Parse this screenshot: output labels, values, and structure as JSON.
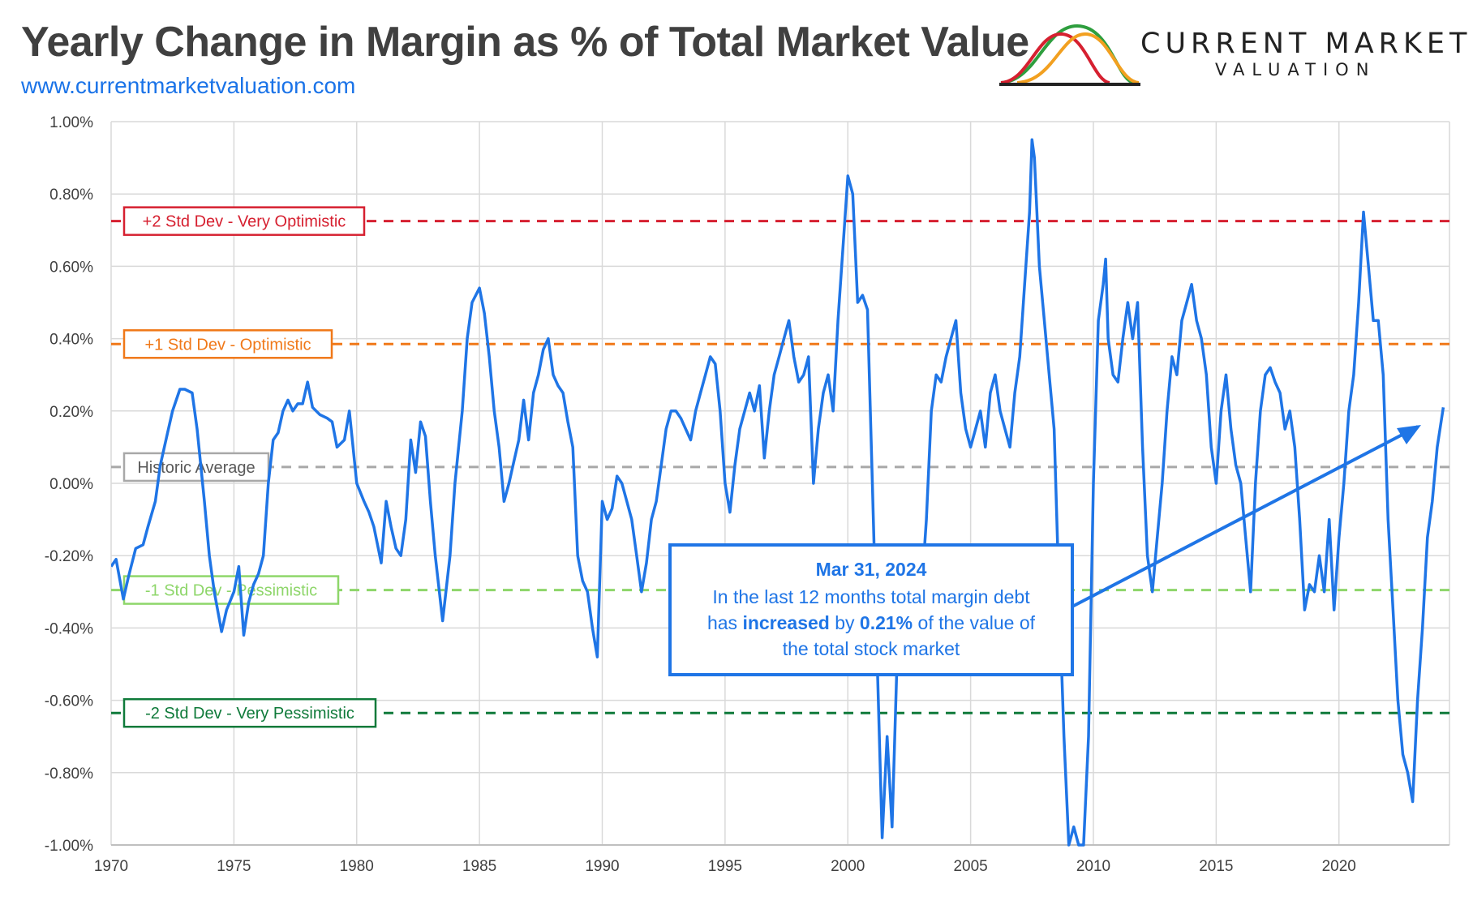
{
  "header": {
    "title": "Yearly Change in Margin as % of Total Market Value",
    "url": "www.currentmarketvaluation.com",
    "logo_line1": "CURRENT MARKET",
    "logo_line2": "VALUATION"
  },
  "chart_data": {
    "type": "line",
    "title": "Yearly Change in Margin as % of Total Market Value",
    "xlabel": "",
    "ylabel": "",
    "xlim": [
      1970,
      2024.5
    ],
    "ylim": [
      -1.0,
      1.0
    ],
    "x_ticks": [
      "1970",
      "1975",
      "1980",
      "1985",
      "1990",
      "1995",
      "2000",
      "2005",
      "2010",
      "2015",
      "2020"
    ],
    "y_ticks": [
      "1.00%",
      "0.80%",
      "0.60%",
      "0.40%",
      "0.20%",
      "0.00%",
      "-0.20%",
      "-0.40%",
      "-0.60%",
      "-0.80%",
      "-1.00%"
    ],
    "grid": true,
    "colors": {
      "series": "#1f75e6",
      "plus2": "#d62030",
      "plus1": "#f07818",
      "average": "#a8a8a8",
      "minus1": "#8ed66a",
      "minus2": "#0f7a3a",
      "callout_border": "#1f75e6",
      "callout_text": "#1f75e6"
    },
    "reference_lines": [
      {
        "key": "plus2",
        "label": "+2 Std Dev - Very Optimistic",
        "value": 0.725
      },
      {
        "key": "plus1",
        "label": "+1 Std Dev - Optimistic",
        "value": 0.385
      },
      {
        "key": "average",
        "label": "Historic Average",
        "value": 0.045
      },
      {
        "key": "minus1",
        "label": "-1 Std Dev - Pessimistic",
        "value": -0.295
      },
      {
        "key": "minus2",
        "label": "-2 Std Dev - Very Pessimistic",
        "value": -0.635
      }
    ],
    "annotation": {
      "date": "Mar 31, 2024",
      "line1": "In the last 12 months total margin debt",
      "line2_a": "has",
      "line2_b": "increased",
      "line2_c": "by",
      "line2_d": "0.21%",
      "line2_e": "of the value of",
      "line3": "the total stock market"
    },
    "series": [
      {
        "values": [
          [
            1970.0,
            -0.23
          ],
          [
            1970.2,
            -0.21
          ],
          [
            1970.5,
            -0.32
          ],
          [
            1970.7,
            -0.26
          ],
          [
            1971.0,
            -0.18
          ],
          [
            1971.3,
            -0.17
          ],
          [
            1971.5,
            -0.12
          ],
          [
            1971.8,
            -0.05
          ],
          [
            1972.0,
            0.05
          ],
          [
            1972.3,
            0.14
          ],
          [
            1972.5,
            0.2
          ],
          [
            1972.8,
            0.26
          ],
          [
            1973.0,
            0.26
          ],
          [
            1973.3,
            0.25
          ],
          [
            1973.5,
            0.15
          ],
          [
            1973.8,
            -0.05
          ],
          [
            1974.0,
            -0.2
          ],
          [
            1974.2,
            -0.3
          ],
          [
            1974.5,
            -0.41
          ],
          [
            1974.7,
            -0.35
          ],
          [
            1975.0,
            -0.3
          ],
          [
            1975.2,
            -0.23
          ],
          [
            1975.4,
            -0.42
          ],
          [
            1975.6,
            -0.33
          ],
          [
            1975.8,
            -0.28
          ],
          [
            1976.0,
            -0.25
          ],
          [
            1976.2,
            -0.2
          ],
          [
            1976.4,
            0.0
          ],
          [
            1976.6,
            0.12
          ],
          [
            1976.8,
            0.14
          ],
          [
            1977.0,
            0.2
          ],
          [
            1977.2,
            0.23
          ],
          [
            1977.4,
            0.2
          ],
          [
            1977.6,
            0.22
          ],
          [
            1977.8,
            0.22
          ],
          [
            1978.0,
            0.28
          ],
          [
            1978.2,
            0.21
          ],
          [
            1978.5,
            0.19
          ],
          [
            1978.8,
            0.18
          ],
          [
            1979.0,
            0.17
          ],
          [
            1979.2,
            0.1
          ],
          [
            1979.5,
            0.12
          ],
          [
            1979.7,
            0.2
          ],
          [
            1980.0,
            0.0
          ],
          [
            1980.3,
            -0.05
          ],
          [
            1980.5,
            -0.08
          ],
          [
            1980.7,
            -0.12
          ],
          [
            1981.0,
            -0.22
          ],
          [
            1981.2,
            -0.05
          ],
          [
            1981.4,
            -0.12
          ],
          [
            1981.6,
            -0.18
          ],
          [
            1981.8,
            -0.2
          ],
          [
            1982.0,
            -0.1
          ],
          [
            1982.2,
            0.12
          ],
          [
            1982.4,
            0.03
          ],
          [
            1982.6,
            0.17
          ],
          [
            1982.8,
            0.13
          ],
          [
            1983.0,
            -0.05
          ],
          [
            1983.2,
            -0.2
          ],
          [
            1983.5,
            -0.38
          ],
          [
            1983.8,
            -0.2
          ],
          [
            1984.0,
            0.0
          ],
          [
            1984.3,
            0.2
          ],
          [
            1984.5,
            0.4
          ],
          [
            1984.7,
            0.5
          ],
          [
            1985.0,
            0.54
          ],
          [
            1985.2,
            0.47
          ],
          [
            1985.4,
            0.35
          ],
          [
            1985.6,
            0.2
          ],
          [
            1985.8,
            0.1
          ],
          [
            1986.0,
            -0.05
          ],
          [
            1986.2,
            0.0
          ],
          [
            1986.4,
            0.06
          ],
          [
            1986.6,
            0.12
          ],
          [
            1986.8,
            0.23
          ],
          [
            1987.0,
            0.12
          ],
          [
            1987.2,
            0.25
          ],
          [
            1987.4,
            0.3
          ],
          [
            1987.6,
            0.37
          ],
          [
            1987.8,
            0.4
          ],
          [
            1988.0,
            0.3
          ],
          [
            1988.2,
            0.27
          ],
          [
            1988.4,
            0.25
          ],
          [
            1988.6,
            0.17
          ],
          [
            1988.8,
            0.1
          ],
          [
            1989.0,
            -0.2
          ],
          [
            1989.2,
            -0.27
          ],
          [
            1989.4,
            -0.3
          ],
          [
            1989.6,
            -0.4
          ],
          [
            1989.8,
            -0.48
          ],
          [
            1990.0,
            -0.05
          ],
          [
            1990.2,
            -0.1
          ],
          [
            1990.4,
            -0.07
          ],
          [
            1990.6,
            0.02
          ],
          [
            1990.8,
            0.0
          ],
          [
            1991.0,
            -0.05
          ],
          [
            1991.2,
            -0.1
          ],
          [
            1991.4,
            -0.2
          ],
          [
            1991.6,
            -0.3
          ],
          [
            1991.8,
            -0.22
          ],
          [
            1992.0,
            -0.1
          ],
          [
            1992.2,
            -0.05
          ],
          [
            1992.4,
            0.05
          ],
          [
            1992.6,
            0.15
          ],
          [
            1992.8,
            0.2
          ],
          [
            1993.0,
            0.2
          ],
          [
            1993.2,
            0.18
          ],
          [
            1993.4,
            0.15
          ],
          [
            1993.6,
            0.12
          ],
          [
            1993.8,
            0.2
          ],
          [
            1994.0,
            0.25
          ],
          [
            1994.2,
            0.3
          ],
          [
            1994.4,
            0.35
          ],
          [
            1994.6,
            0.33
          ],
          [
            1994.8,
            0.2
          ],
          [
            1995.0,
            0.0
          ],
          [
            1995.2,
            -0.08
          ],
          [
            1995.4,
            0.05
          ],
          [
            1995.6,
            0.15
          ],
          [
            1995.8,
            0.2
          ],
          [
            1996.0,
            0.25
          ],
          [
            1996.2,
            0.2
          ],
          [
            1996.4,
            0.27
          ],
          [
            1996.6,
            0.07
          ],
          [
            1996.8,
            0.2
          ],
          [
            1997.0,
            0.3
          ],
          [
            1997.2,
            0.35
          ],
          [
            1997.4,
            0.4
          ],
          [
            1997.6,
            0.45
          ],
          [
            1997.8,
            0.35
          ],
          [
            1998.0,
            0.28
          ],
          [
            1998.2,
            0.3
          ],
          [
            1998.4,
            0.35
          ],
          [
            1998.6,
            0.0
          ],
          [
            1998.8,
            0.15
          ],
          [
            1999.0,
            0.25
          ],
          [
            1999.2,
            0.3
          ],
          [
            1999.4,
            0.2
          ],
          [
            1999.6,
            0.45
          ],
          [
            1999.8,
            0.65
          ],
          [
            2000.0,
            0.85
          ],
          [
            2000.2,
            0.8
          ],
          [
            2000.4,
            0.5
          ],
          [
            2000.6,
            0.52
          ],
          [
            2000.8,
            0.48
          ],
          [
            2001.0,
            0.0
          ],
          [
            2001.2,
            -0.5
          ],
          [
            2001.4,
            -0.98
          ],
          [
            2001.6,
            -0.7
          ],
          [
            2001.8,
            -0.95
          ],
          [
            2002.0,
            -0.5
          ],
          [
            2002.2,
            -0.3
          ],
          [
            2002.4,
            -0.2
          ],
          [
            2002.6,
            -0.18
          ],
          [
            2002.8,
            -0.25
          ],
          [
            2003.0,
            -0.3
          ],
          [
            2003.2,
            -0.1
          ],
          [
            2003.4,
            0.2
          ],
          [
            2003.6,
            0.3
          ],
          [
            2003.8,
            0.28
          ],
          [
            2004.0,
            0.35
          ],
          [
            2004.2,
            0.4
          ],
          [
            2004.4,
            0.45
          ],
          [
            2004.6,
            0.25
          ],
          [
            2004.8,
            0.15
          ],
          [
            2005.0,
            0.1
          ],
          [
            2005.2,
            0.15
          ],
          [
            2005.4,
            0.2
          ],
          [
            2005.6,
            0.1
          ],
          [
            2005.8,
            0.25
          ],
          [
            2006.0,
            0.3
          ],
          [
            2006.2,
            0.2
          ],
          [
            2006.4,
            0.15
          ],
          [
            2006.6,
            0.1
          ],
          [
            2006.8,
            0.25
          ],
          [
            2007.0,
            0.35
          ],
          [
            2007.2,
            0.55
          ],
          [
            2007.4,
            0.75
          ],
          [
            2007.5,
            0.95
          ],
          [
            2007.6,
            0.9
          ],
          [
            2007.8,
            0.6
          ],
          [
            2008.0,
            0.45
          ],
          [
            2008.2,
            0.3
          ],
          [
            2008.4,
            0.15
          ],
          [
            2008.6,
            -0.3
          ],
          [
            2008.8,
            -0.7
          ],
          [
            2009.0,
            -1.0
          ],
          [
            2009.2,
            -0.95
          ],
          [
            2009.4,
            -1.0
          ],
          [
            2009.6,
            -1.0
          ],
          [
            2009.8,
            -0.7
          ],
          [
            2010.0,
            0.0
          ],
          [
            2010.2,
            0.45
          ],
          [
            2010.4,
            0.55
          ],
          [
            2010.5,
            0.62
          ],
          [
            2010.6,
            0.4
          ],
          [
            2010.8,
            0.3
          ],
          [
            2011.0,
            0.28
          ],
          [
            2011.2,
            0.4
          ],
          [
            2011.4,
            0.5
          ],
          [
            2011.6,
            0.4
          ],
          [
            2011.8,
            0.5
          ],
          [
            2012.0,
            0.1
          ],
          [
            2012.2,
            -0.2
          ],
          [
            2012.4,
            -0.3
          ],
          [
            2012.6,
            -0.15
          ],
          [
            2012.8,
            0.0
          ],
          [
            2013.0,
            0.2
          ],
          [
            2013.2,
            0.35
          ],
          [
            2013.4,
            0.3
          ],
          [
            2013.6,
            0.45
          ],
          [
            2013.8,
            0.5
          ],
          [
            2014.0,
            0.55
          ],
          [
            2014.2,
            0.45
          ],
          [
            2014.4,
            0.4
          ],
          [
            2014.6,
            0.3
          ],
          [
            2014.8,
            0.1
          ],
          [
            2015.0,
            0.0
          ],
          [
            2015.2,
            0.2
          ],
          [
            2015.4,
            0.3
          ],
          [
            2015.6,
            0.15
          ],
          [
            2015.8,
            0.05
          ],
          [
            2016.0,
            0.0
          ],
          [
            2016.2,
            -0.15
          ],
          [
            2016.4,
            -0.3
          ],
          [
            2016.6,
            0.0
          ],
          [
            2016.8,
            0.2
          ],
          [
            2017.0,
            0.3
          ],
          [
            2017.2,
            0.32
          ],
          [
            2017.4,
            0.28
          ],
          [
            2017.6,
            0.25
          ],
          [
            2017.8,
            0.15
          ],
          [
            2018.0,
            0.2
          ],
          [
            2018.2,
            0.1
          ],
          [
            2018.4,
            -0.1
          ],
          [
            2018.6,
            -0.35
          ],
          [
            2018.8,
            -0.28
          ],
          [
            2019.0,
            -0.3
          ],
          [
            2019.2,
            -0.2
          ],
          [
            2019.4,
            -0.3
          ],
          [
            2019.6,
            -0.1
          ],
          [
            2019.8,
            -0.35
          ],
          [
            2020.0,
            -0.15
          ],
          [
            2020.2,
            0.0
          ],
          [
            2020.4,
            0.2
          ],
          [
            2020.6,
            0.3
          ],
          [
            2020.8,
            0.5
          ],
          [
            2021.0,
            0.75
          ],
          [
            2021.2,
            0.6
          ],
          [
            2021.4,
            0.45
          ],
          [
            2021.6,
            0.45
          ],
          [
            2021.8,
            0.3
          ],
          [
            2022.0,
            -0.1
          ],
          [
            2022.2,
            -0.35
          ],
          [
            2022.4,
            -0.6
          ],
          [
            2022.6,
            -0.75
          ],
          [
            2022.8,
            -0.8
          ],
          [
            2023.0,
            -0.88
          ],
          [
            2023.2,
            -0.6
          ],
          [
            2023.4,
            -0.4
          ],
          [
            2023.6,
            -0.15
          ],
          [
            2023.8,
            -0.05
          ],
          [
            2024.0,
            0.1
          ],
          [
            2024.25,
            0.21
          ]
        ]
      }
    ]
  }
}
